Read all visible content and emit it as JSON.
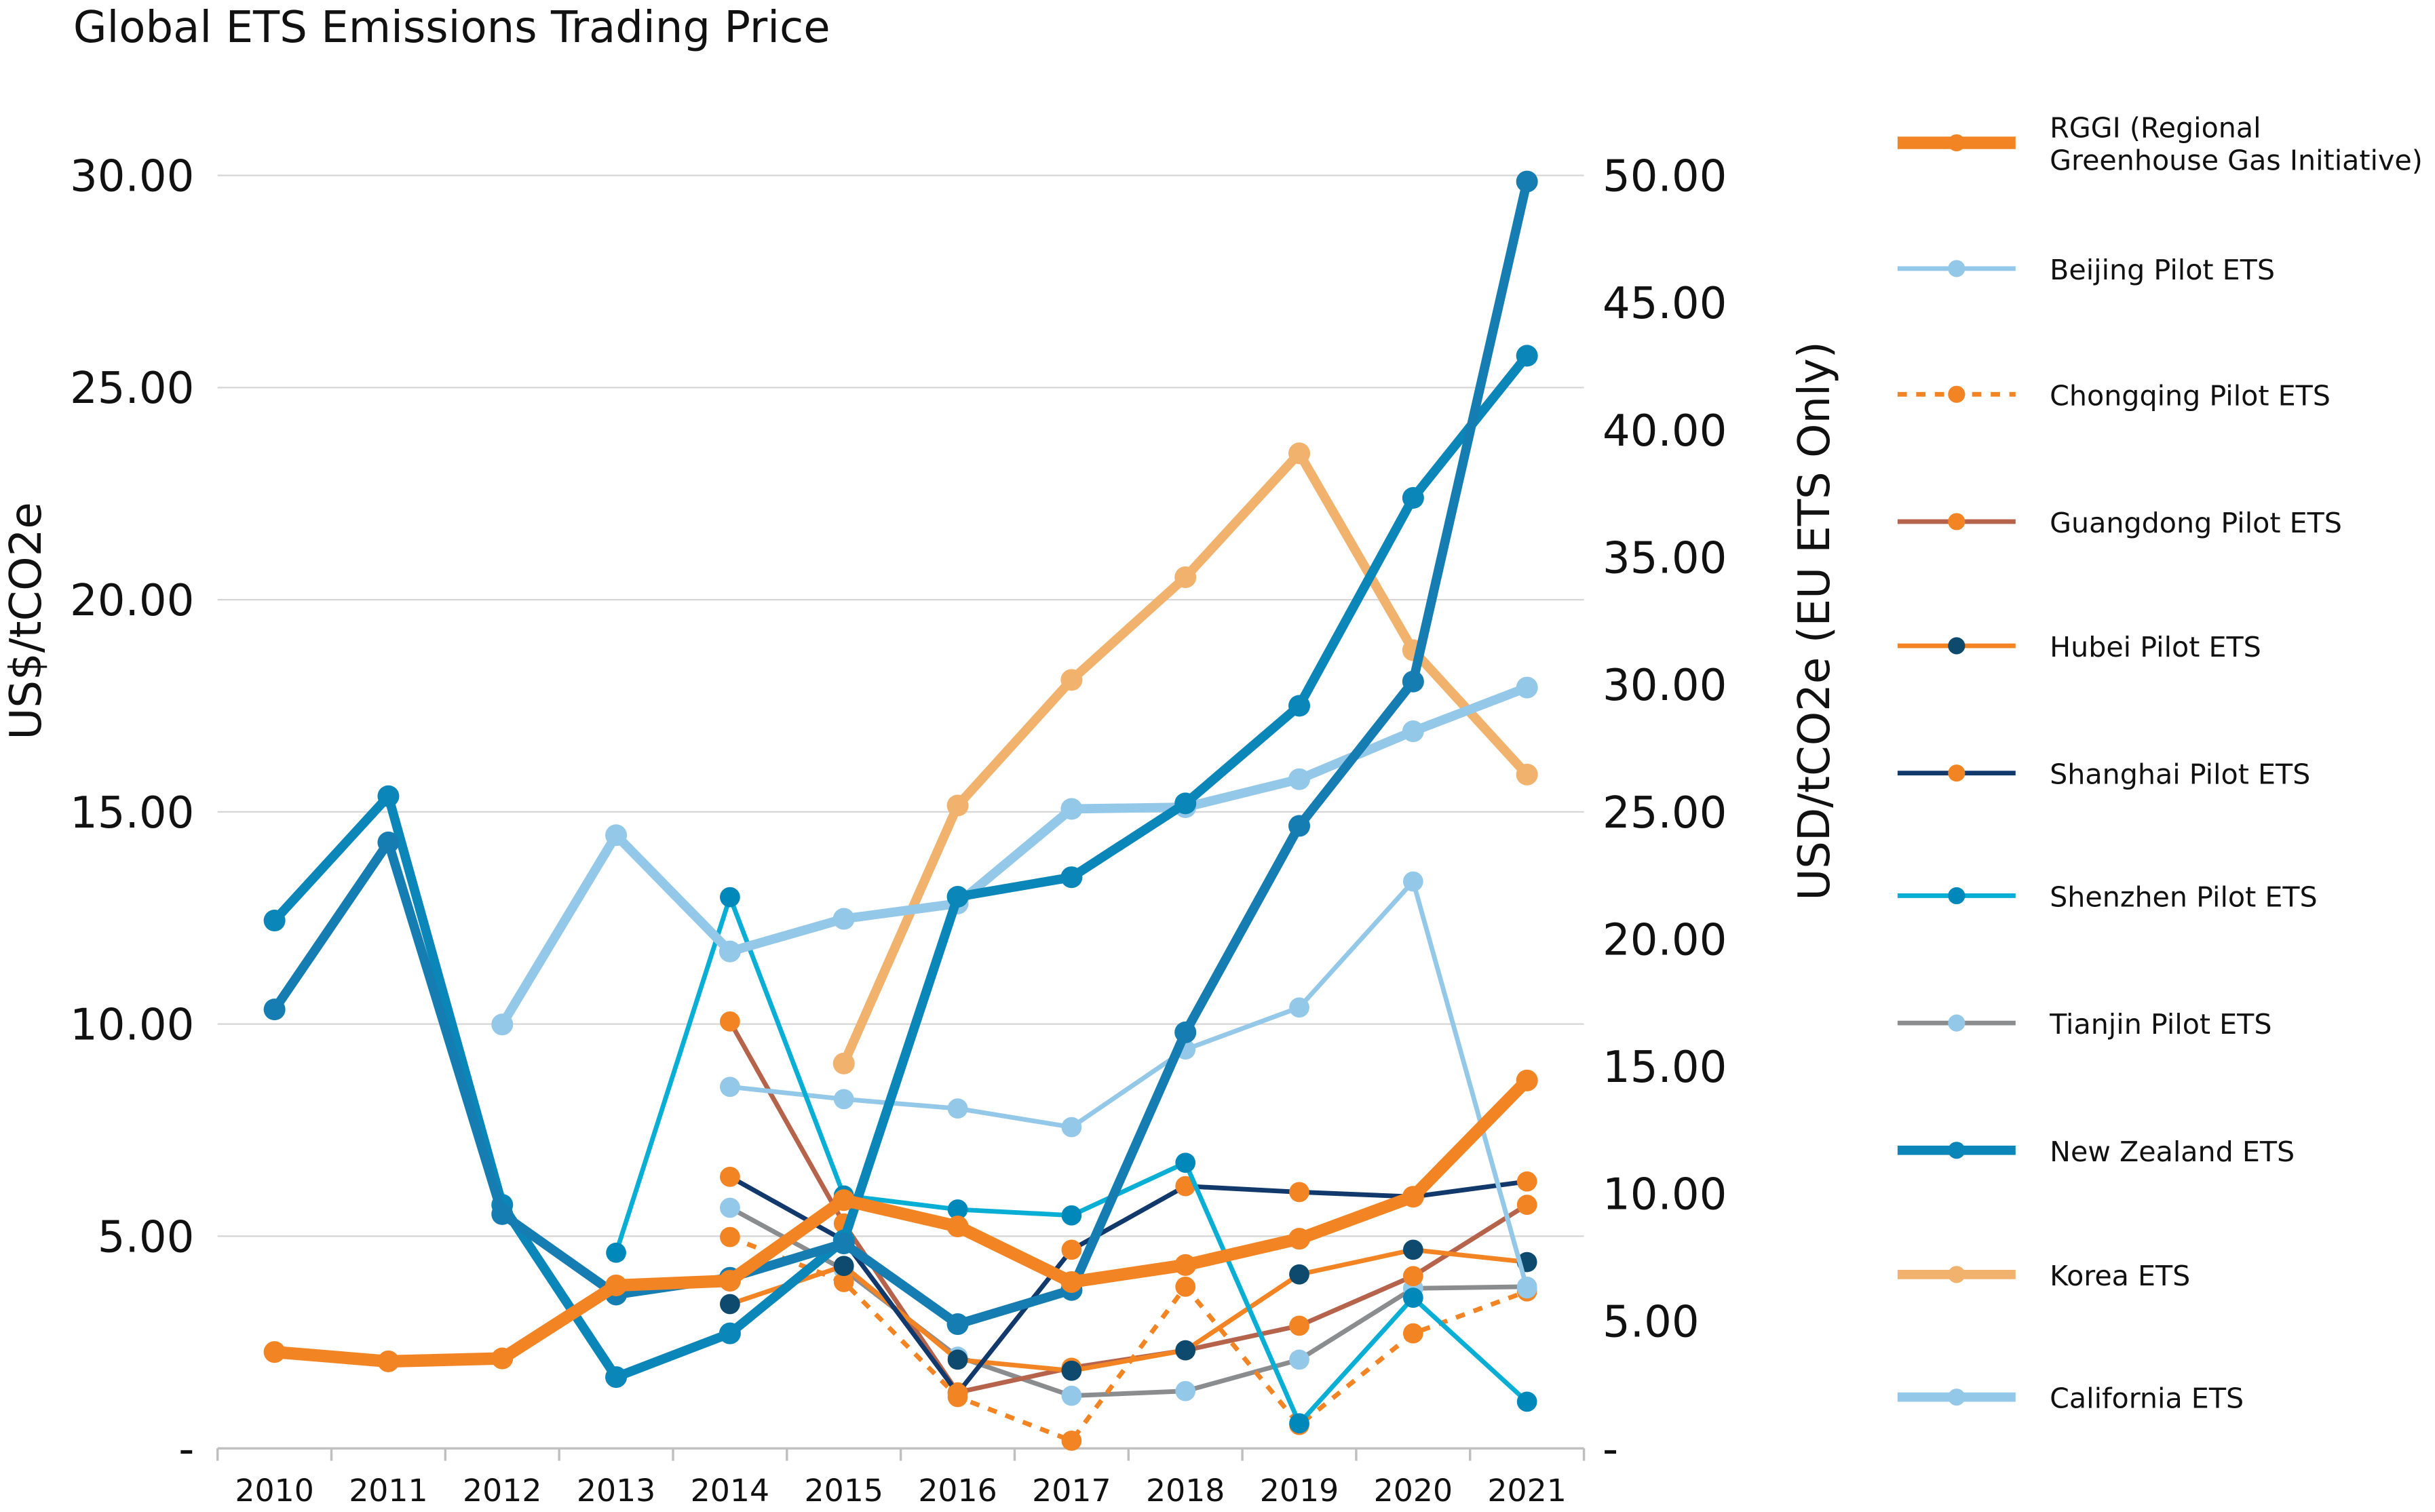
{
  "chart_data": {
    "type": "line",
    "title": "Global ETS Emissions Trading Price",
    "xlabel": "",
    "ylabel": "US$/tCO2e",
    "ylabel_right": "USD/tCO2e (EU ETS Only)",
    "ylim": [
      0,
      30
    ],
    "ylim_right": [
      0,
      50
    ],
    "grid": true,
    "legend_position": "right",
    "x": [
      "2010",
      "2011",
      "2012",
      "2013",
      "2014",
      "2015",
      "2016",
      "2017",
      "2018",
      "2019",
      "2020",
      "2021"
    ],
    "yticks": [
      "-",
      "5.00",
      "10.00",
      "15.00",
      "20.00",
      "25.00",
      "30.00"
    ],
    "yticks_right": [
      "-",
      "5.00",
      "10.00",
      "15.00",
      "20.00",
      "25.00",
      "30.00",
      "35.00",
      "40.00",
      "45.00",
      "50.00"
    ],
    "series": [
      {
        "name": "Tianjin Pilot ETS",
        "legend_lines": [
          "Tianjin Pilot ETS"
        ],
        "color": "#8a8c8e",
        "dot": "#93c8e8",
        "width": 3,
        "dash": false,
        "axis": "left",
        "values": [
          null,
          null,
          null,
          null,
          5.67,
          4.21,
          2.16,
          1.24,
          1.35,
          2.09,
          3.77,
          3.81
        ]
      },
      {
        "name": "Guangdong Pilot ETS",
        "legend_lines": [
          "Guangdong Pilot ETS"
        ],
        "color": "#b5634a",
        "dot": "#f28423",
        "width": 3,
        "dash": false,
        "axis": "left",
        "values": [
          null,
          null,
          null,
          null,
          10.06,
          5.3,
          1.32,
          1.9,
          2.31,
          2.89,
          4.06,
          5.74
        ]
      },
      {
        "name": "Chongqing Pilot ETS",
        "legend_lines": [
          "Chongqing Pilot ETS"
        ],
        "color": "#f28423",
        "dot": "#f28423",
        "width": 3,
        "dash": true,
        "axis": "left",
        "values": [
          null,
          null,
          null,
          null,
          4.98,
          3.92,
          1.21,
          0.18,
          3.81,
          0.55,
          2.71,
          3.7
        ]
      },
      {
        "name": "Hubei Pilot ETS",
        "legend_lines": [
          "Hubei Pilot ETS"
        ],
        "color": "#f28423",
        "dot": "#0d4a6e",
        "width": 3,
        "dash": false,
        "axis": "left",
        "values": [
          null,
          null,
          null,
          null,
          3.4,
          4.3,
          2.09,
          1.83,
          2.31,
          4.1,
          4.68,
          4.39
        ]
      },
      {
        "name": "Shanghai Pilot ETS",
        "legend_lines": [
          "Shanghai Pilot ETS"
        ],
        "color": "#12396b",
        "dot": "#f28423",
        "width": 3,
        "dash": false,
        "axis": "left",
        "values": [
          null,
          null,
          null,
          null,
          6.4,
          4.9,
          1.3,
          4.68,
          6.18,
          6.04,
          5.93,
          6.29
        ]
      },
      {
        "name": "Beijing Pilot ETS",
        "legend_lines": [
          "Beijing Pilot ETS"
        ],
        "color": "#93c8e8",
        "dot": "#93c8e8",
        "width": 3,
        "dash": false,
        "axis": "left",
        "values": [
          null,
          null,
          null,
          null,
          8.52,
          8.23,
          8.01,
          7.57,
          9.4,
          10.39,
          13.36,
          3.77
        ]
      },
      {
        "name": "Shenzhen Pilot ETS",
        "legend_lines": [
          "Shenzhen Pilot ETS"
        ],
        "color": "#08aed4",
        "dot": "#0088bb",
        "width": 3,
        "dash": false,
        "axis": "left",
        "values": [
          null,
          null,
          null,
          4.61,
          12.99,
          5.96,
          5.63,
          5.49,
          6.73,
          0.59,
          3.55,
          1.1
        ]
      },
      {
        "name": "Korea ETS",
        "legend_lines": [
          "Korea ETS"
        ],
        "color": "#f0b26c",
        "dot": "#f0b26c",
        "width": 6,
        "dash": false,
        "axis": "left",
        "values": [
          null,
          null,
          null,
          null,
          null,
          9.07,
          15.15,
          18.11,
          20.53,
          23.45,
          18.81,
          15.88
        ]
      },
      {
        "name": "California ETS",
        "legend_lines": [
          "California ETS"
        ],
        "color": "#93c8e8",
        "dot": "#93c8e8",
        "width": 6,
        "dash": false,
        "axis": "left",
        "values": [
          null,
          null,
          9.99,
          14.45,
          11.71,
          12.48,
          12.84,
          15.07,
          15.11,
          15.77,
          16.9,
          17.93
        ]
      },
      {
        "name": "New Zealand ETS",
        "legend_lines": [
          "New Zealand ETS"
        ],
        "color": "#0a86b9",
        "dot": "#0a86b9",
        "width": 6,
        "dash": false,
        "axis": "left",
        "values": [
          12.44,
          15.37,
          5.74,
          1.68,
          2.71,
          4.9,
          13.0,
          13.46,
          15.2,
          17.5,
          22.4,
          25.75
        ]
      },
      {
        "name": null,
        "legend_lines": null,
        "color": "#167db2",
        "dot": "#167db2",
        "width": 6,
        "dash": false,
        "axis": "right",
        "values": [
          17.24,
          23.8,
          9.2,
          6.04,
          6.7,
          8.05,
          4.88,
          6.22,
          16.34,
          24.45,
          30.12,
          49.76
        ]
      },
      {
        "name": "RGGI (Regional Greenhouse Gas Initiative)",
        "legend_lines": [
          "RGGI (Regional",
          "Greenhouse Gas Initiative)"
        ],
        "color": "#f28423",
        "dot": "#f28423",
        "width": 8,
        "dash": false,
        "axis": "left",
        "values": [
          2.27,
          2.05,
          2.12,
          3.84,
          3.95,
          5.85,
          5.23,
          3.92,
          4.32,
          4.94,
          5.93,
          8.67
        ]
      }
    ],
    "legend_order": [
      "RGGI (Regional Greenhouse Gas Initiative)",
      "Beijing Pilot ETS",
      "Chongqing Pilot ETS",
      "Guangdong Pilot ETS",
      "Hubei Pilot ETS",
      "Shanghai Pilot ETS",
      "Shenzhen Pilot ETS",
      "Tianjin Pilot ETS",
      "New Zealand ETS",
      "Korea ETS",
      "California ETS"
    ]
  }
}
